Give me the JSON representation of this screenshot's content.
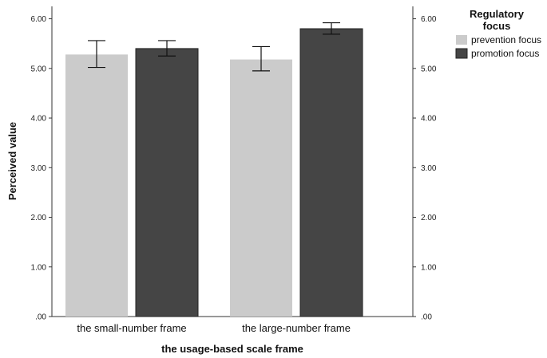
{
  "chart_data": {
    "type": "bar",
    "xlabel": "the usage-based scale frame",
    "ylabel": "Perceived value",
    "ylim": [
      0,
      6.25
    ],
    "yticks": [
      ".00",
      "1.00",
      "2.00",
      "3.00",
      "4.00",
      "5.00",
      "6.00"
    ],
    "ytick_values": [
      0,
      1,
      2,
      3,
      4,
      5,
      6
    ],
    "right_axis_ticks": true,
    "grid": false,
    "categories": [
      "the small-number frame",
      "the large-number frame"
    ],
    "series": [
      {
        "name": "prevention focus",
        "color": "#cbcbcb",
        "values": [
          5.28,
          5.18
        ],
        "error_low": [
          5.02,
          4.95
        ],
        "error_high": [
          5.56,
          5.44
        ]
      },
      {
        "name": "promotion focus",
        "color": "#454545",
        "values": [
          5.4,
          5.8
        ],
        "error_low": [
          5.25,
          5.69
        ],
        "error_high": [
          5.56,
          5.92
        ]
      }
    ],
    "legend": {
      "title_line1": "Regulatory",
      "title_line2": "focus",
      "placement": "top-right"
    }
  }
}
